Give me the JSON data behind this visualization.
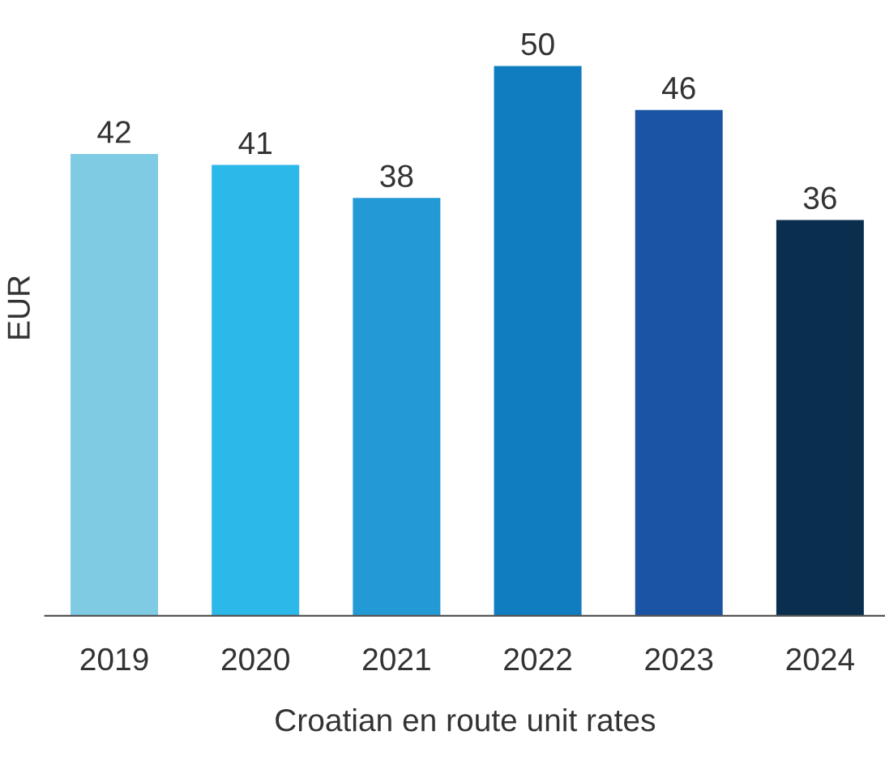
{
  "chart_data": {
    "type": "bar",
    "xlabel": "Croatian en route unit rates",
    "ylabel": "EUR",
    "categories": [
      "2019",
      "2020",
      "2021",
      "2022",
      "2023",
      "2024"
    ],
    "values": [
      42,
      41,
      38,
      50,
      46,
      36
    ],
    "colors": [
      "#7fcbe4",
      "#2db8ea",
      "#239ad6",
      "#0f7dc0",
      "#1b54a3",
      "#0a2e4d"
    ],
    "data_labels": true,
    "grid": false,
    "legend": false
  }
}
